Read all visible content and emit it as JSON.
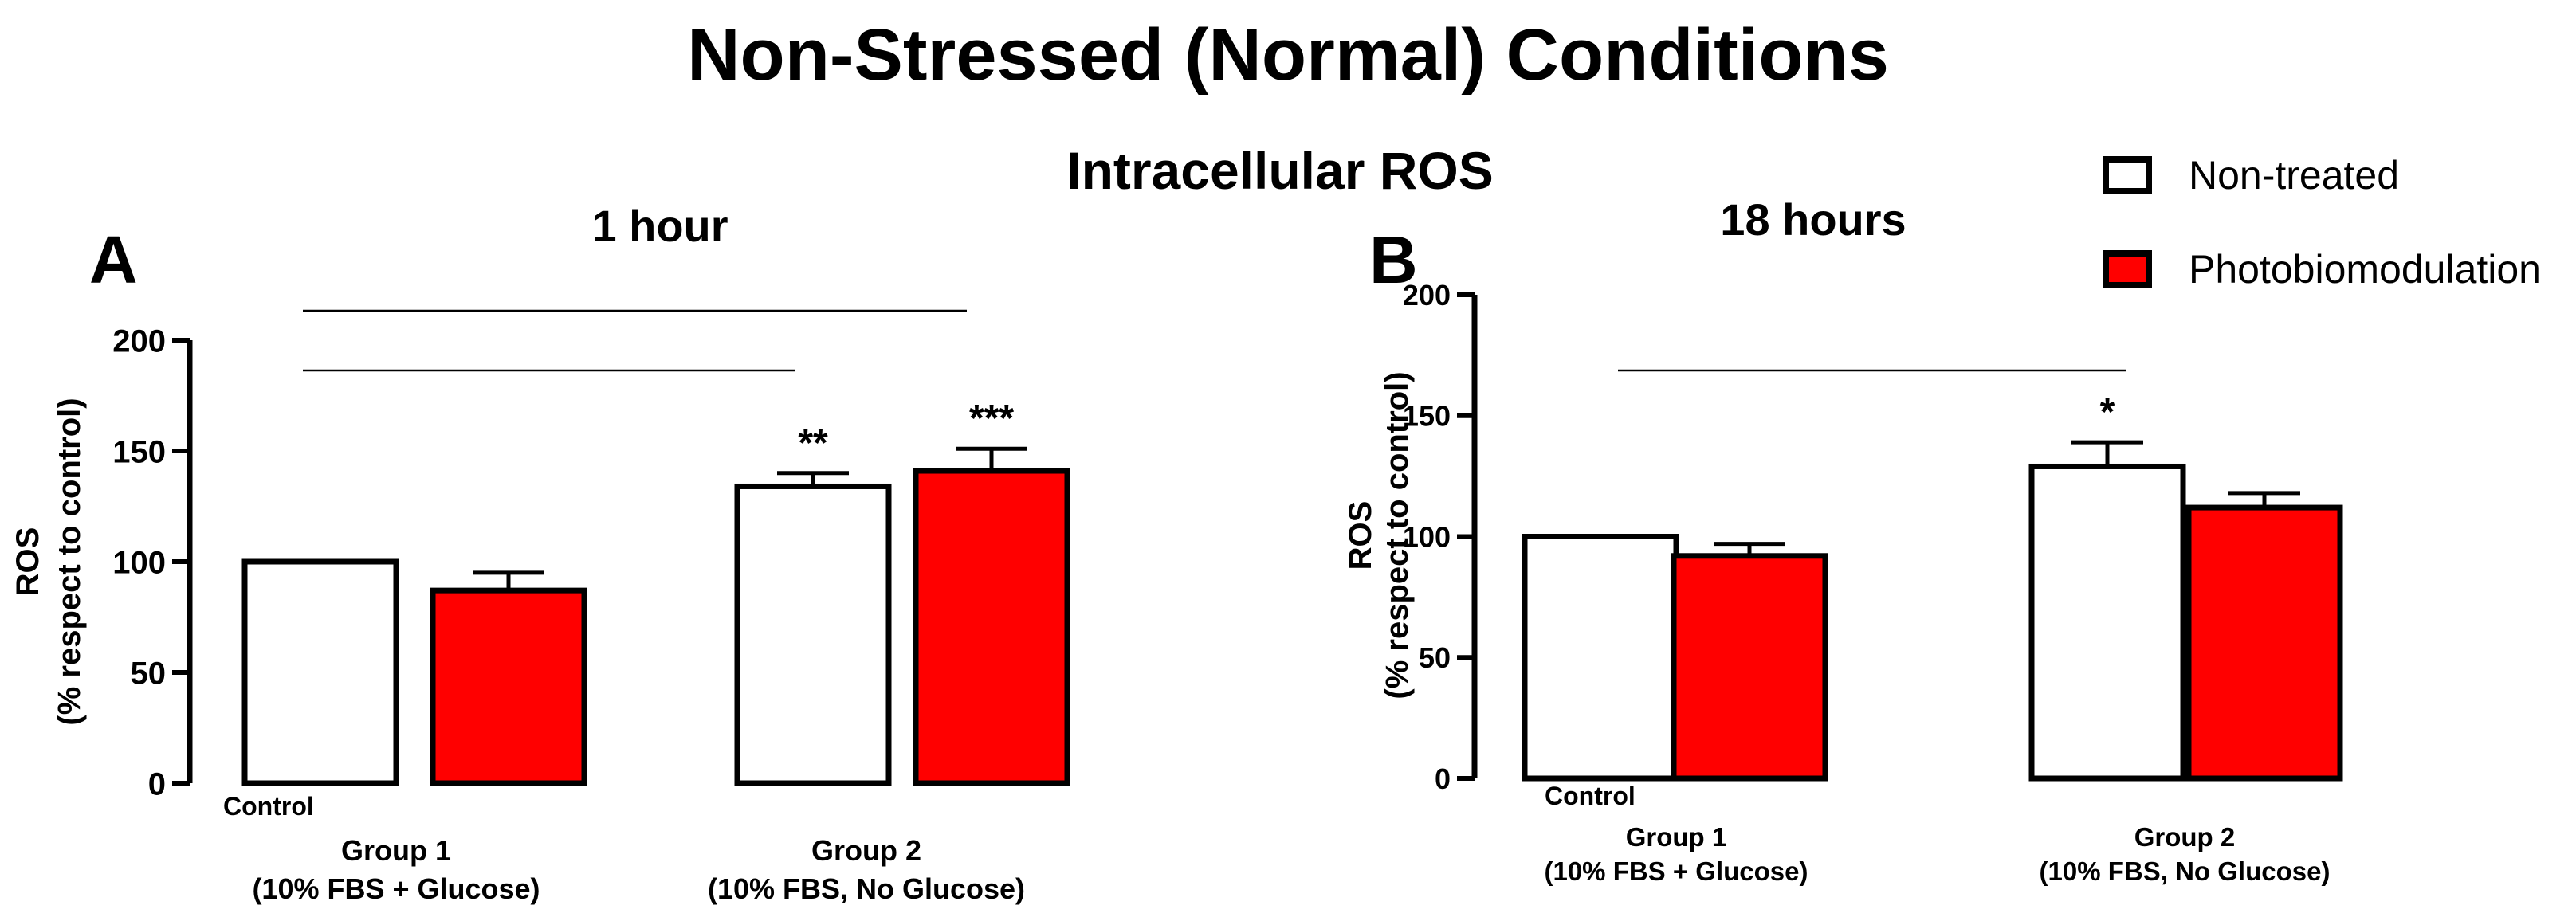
{
  "figure": {
    "title": "Non-Stressed (Normal) Conditions",
    "subtitle": "Intracellular ROS",
    "legend": {
      "placement": "top-right",
      "entries": [
        {
          "label": "Non-treated",
          "color": "#ffffff"
        },
        {
          "label": "Photobiomodulation",
          "color": "#ff0000"
        }
      ]
    },
    "colors": {
      "bar_stroke": "#000000",
      "non_treated": "#ffffff",
      "photobiomodulation": "#ff0000"
    }
  },
  "chart_data": [
    {
      "type": "bar",
      "panel_label": "A",
      "title": "1 hour",
      "xlabel": "",
      "ylabel_line1": "ROS",
      "ylabel_line2": "(% respect to control)",
      "ylim": [
        0,
        200
      ],
      "yticks": [
        0,
        50,
        100,
        150,
        200
      ],
      "control_label": "Control",
      "categories": [
        {
          "line1": "Group 1",
          "line2": "(10% FBS + Glucose)"
        },
        {
          "line1": "Group 2",
          "line2": "(10% FBS, No Glucose)"
        }
      ],
      "series": [
        {
          "name": "Non-treated",
          "values": [
            100,
            134
          ],
          "errors": [
            0,
            6
          ],
          "significance": [
            "",
            "**"
          ]
        },
        {
          "name": "Photobiomodulation",
          "values": [
            87,
            141
          ],
          "errors": [
            8,
            10
          ],
          "significance": [
            "",
            "***"
          ]
        }
      ],
      "comparison_lines": 2
    },
    {
      "type": "bar",
      "panel_label": "B",
      "title": "18 hours",
      "xlabel": "",
      "ylabel_line1": "ROS",
      "ylabel_line2": "(% respect to control)",
      "ylim": [
        0,
        200
      ],
      "yticks": [
        0,
        50,
        100,
        150,
        200
      ],
      "control_label": "Control",
      "categories": [
        {
          "line1": "Group 1",
          "line2": "(10% FBS + Glucose)"
        },
        {
          "line1": "Group 2",
          "line2": "(10% FBS, No Glucose)"
        }
      ],
      "series": [
        {
          "name": "Non-treated",
          "values": [
            100,
            129
          ],
          "errors": [
            0,
            10
          ],
          "significance": [
            "",
            "*"
          ]
        },
        {
          "name": "Photobiomodulation",
          "values": [
            92,
            112
          ],
          "errors": [
            5,
            6
          ],
          "significance": [
            "",
            ""
          ]
        }
      ],
      "comparison_lines": 1
    }
  ]
}
